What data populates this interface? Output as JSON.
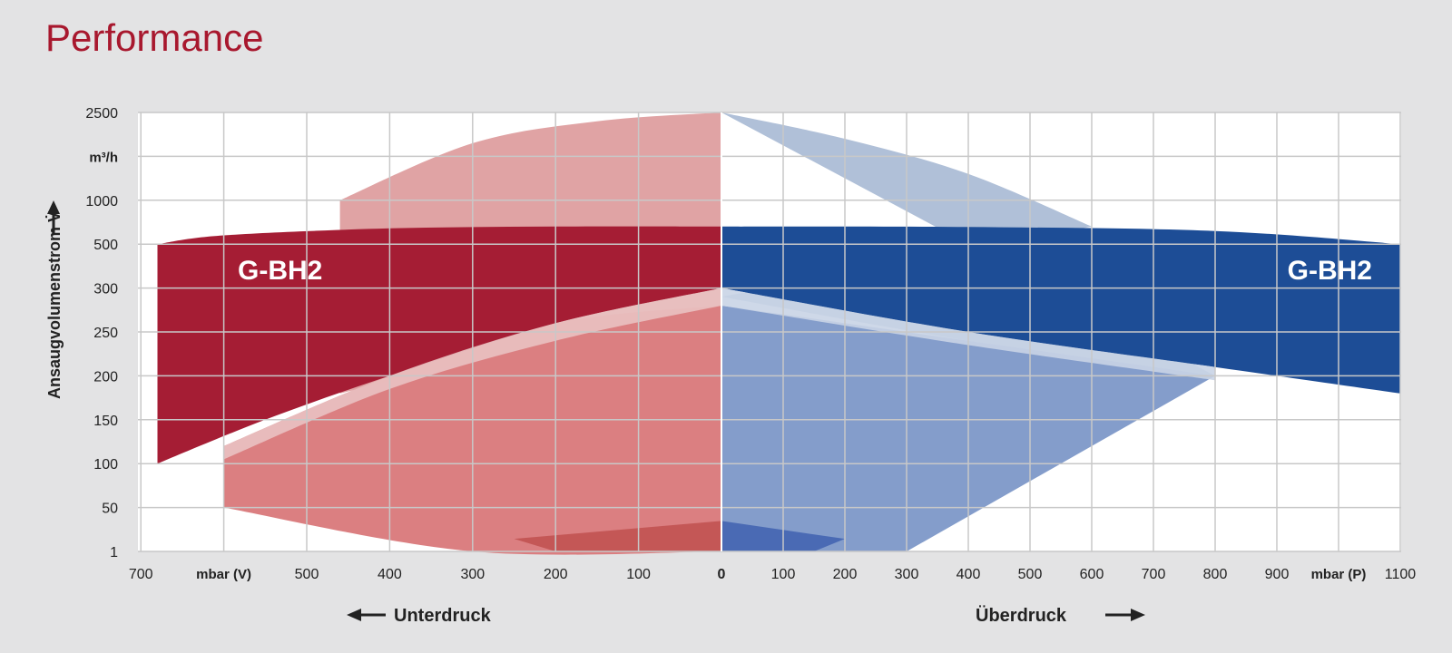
{
  "title": "Performance",
  "chart_data": {
    "type": "area",
    "ylabel": "Ansaugvolumenstrom V̇",
    "y_unit": "m³/h",
    "y_ticks": [
      "2500",
      "m³/h",
      "1000",
      "500",
      "300",
      "250",
      "200",
      "150",
      "100",
      "50",
      "1"
    ],
    "x_left_unit": "mbar (V)",
    "x_right_unit": "mbar (P)",
    "x_ticks_left": [
      "700",
      "mbar (V)",
      "500",
      "400",
      "300",
      "200",
      "100"
    ],
    "x_tick_zero": "0",
    "x_ticks_right": [
      "100",
      "200",
      "300",
      "400",
      "500",
      "600",
      "700",
      "800",
      "900",
      "mbar (P)",
      "1100"
    ],
    "x_direction_left": "Unterdruck",
    "x_direction_right": "Überdruck",
    "colors": {
      "vacuum_dark": "#a51d34",
      "vacuum_light": "#d9787a",
      "vacuum_pale": "#e0a3a4",
      "pressure_dark": "#1d4d96",
      "pressure_light": "#7d98c8",
      "pressure_pale": "#b0c0d8"
    },
    "series": [
      {
        "name": "G-BH2",
        "side": "vacuum",
        "upper": [
          [
            680,
            500
          ],
          [
            600,
            600
          ],
          [
            400,
            680
          ],
          [
            200,
            700
          ],
          [
            0,
            700
          ]
        ],
        "lower": [
          [
            0,
            300
          ],
          [
            200,
            260
          ],
          [
            400,
            200
          ],
          [
            550,
            150
          ],
          [
            680,
            100
          ]
        ]
      },
      {
        "name": "G-BH2",
        "side": "pressure",
        "upper": [
          [
            0,
            700
          ],
          [
            400,
            695
          ],
          [
            800,
            650
          ],
          [
            1100,
            500
          ]
        ],
        "lower": [
          [
            1100,
            180
          ],
          [
            800,
            210
          ],
          [
            400,
            250
          ],
          [
            0,
            300
          ]
        ]
      }
    ],
    "background_envelopes": [
      {
        "side": "vacuum",
        "upper": [
          [
            460,
            1000
          ],
          [
            300,
            1800
          ],
          [
            150,
            2300
          ],
          [
            0,
            2500
          ]
        ],
        "lower": [
          [
            0,
            280
          ],
          [
            200,
            240
          ],
          [
            460,
            180
          ]
        ]
      },
      {
        "side": "pressure",
        "upper": [
          [
            0,
            2500
          ],
          [
            200,
            1900
          ],
          [
            400,
            1300
          ],
          [
            600,
            700
          ]
        ],
        "lower": [
          [
            0,
            290
          ],
          [
            400,
            240
          ],
          [
            800,
            200
          ]
        ]
      },
      {
        "side": "vacuum",
        "upper": [
          [
            600,
            120
          ],
          [
            400,
            200
          ],
          [
            200,
            260
          ],
          [
            0,
            280
          ]
        ],
        "lower": [
          [
            0,
            1
          ],
          [
            300,
            1
          ],
          [
            600,
            50
          ]
        ]
      },
      {
        "side": "pressure",
        "upper": [
          [
            0,
            280
          ],
          [
            400,
            240
          ],
          [
            800,
            200
          ]
        ],
        "lower": [
          [
            300,
            1
          ],
          [
            0,
            1
          ]
        ]
      }
    ]
  }
}
